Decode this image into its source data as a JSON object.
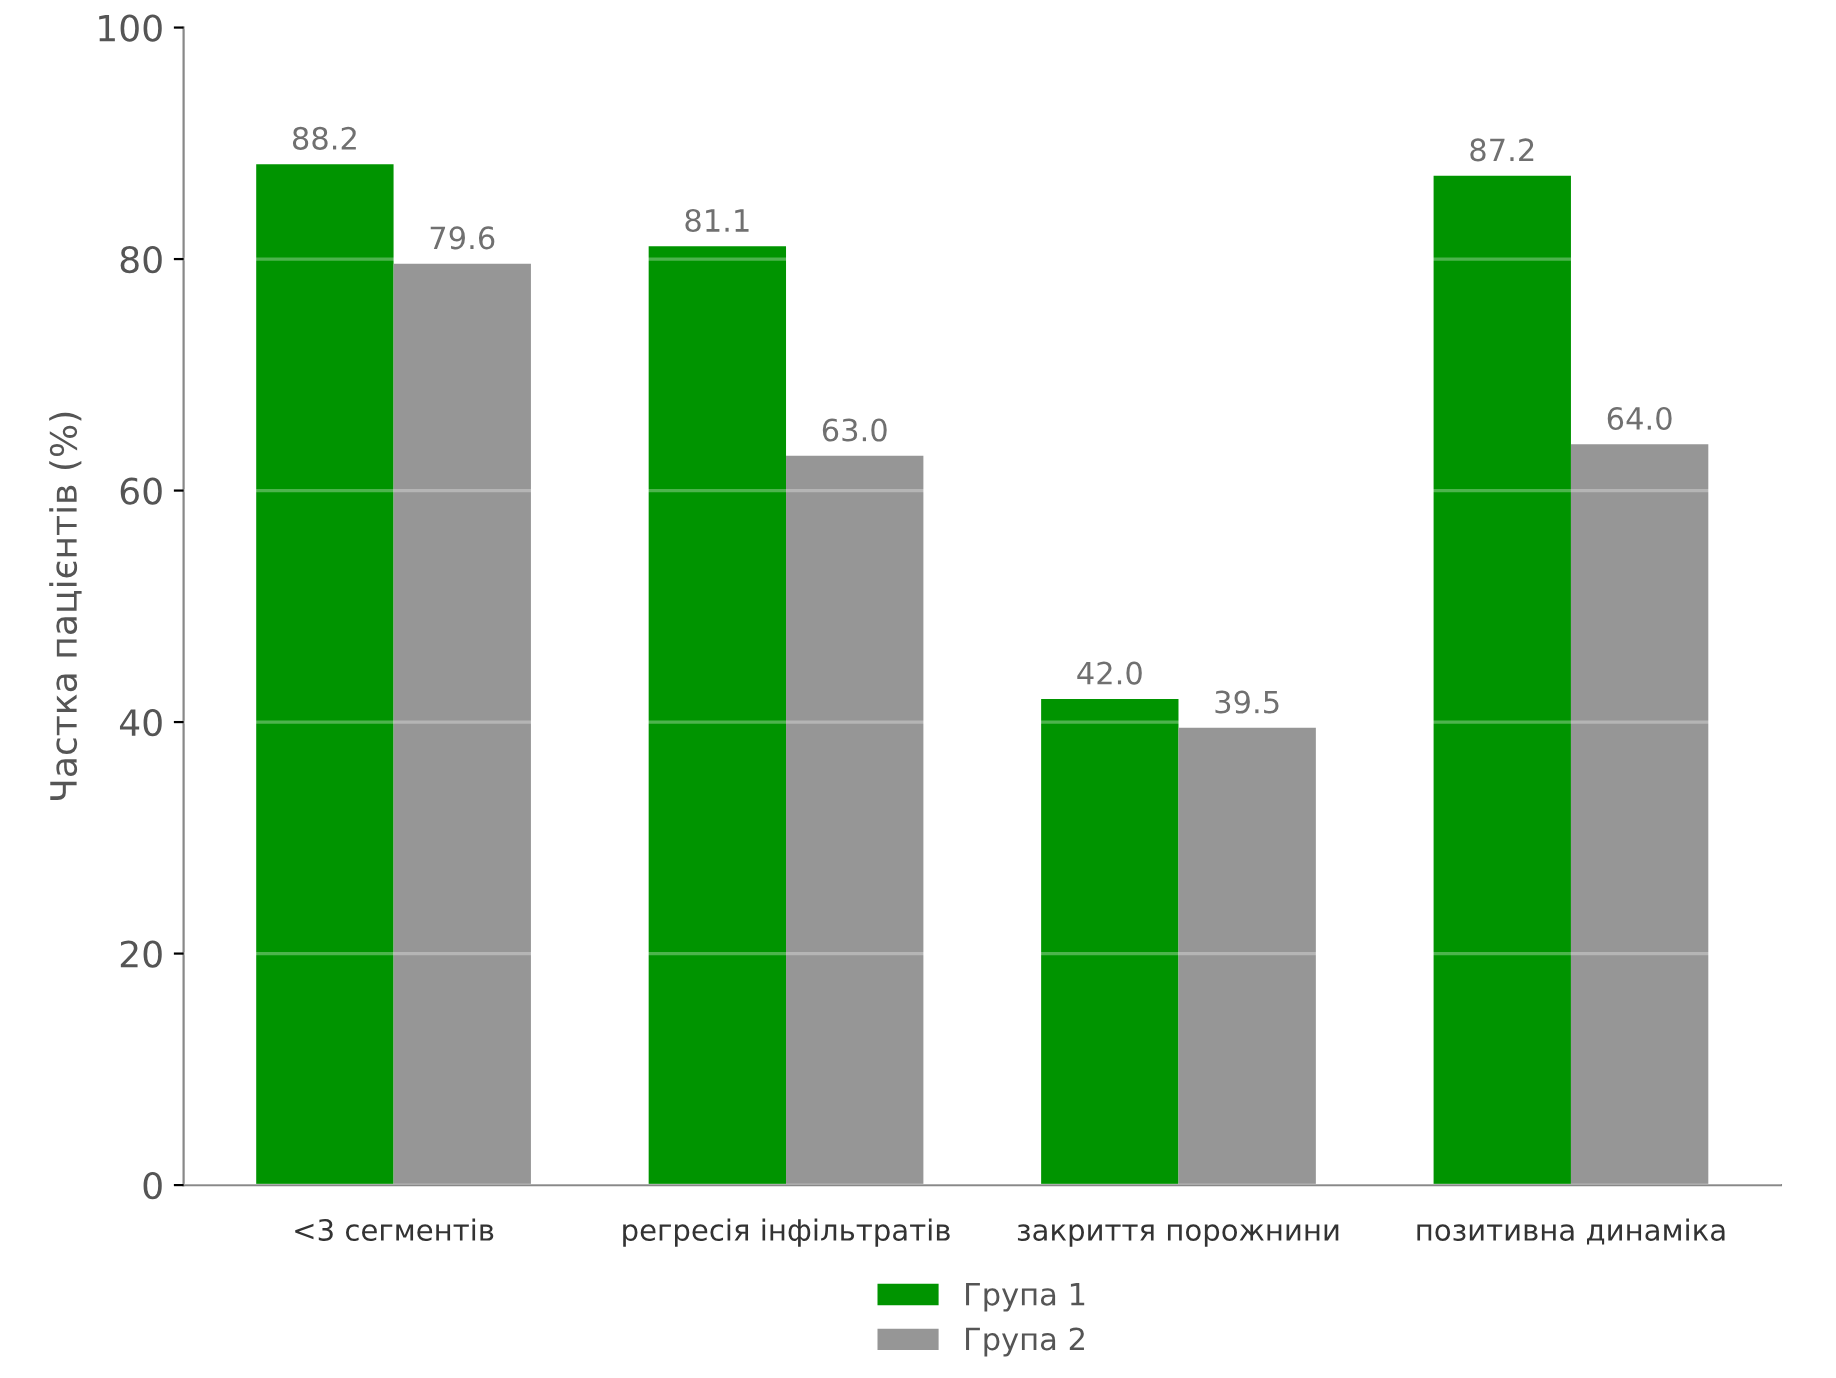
{
  "chart_data": {
    "type": "bar",
    "ylabel": "Частка пацієнтів (%)",
    "categories": [
      "<3 сегментів",
      "регресія інфільтратів",
      "закриття порожнини",
      "позитивна динаміка"
    ],
    "series": [
      {
        "name": "Група 1",
        "color": "#009400",
        "values": [
          88.2,
          81.1,
          42.0,
          87.2
        ],
        "value_labels": [
          "88.2",
          "81.1",
          "42.0",
          "87.2"
        ]
      },
      {
        "name": "Група 2",
        "color": "#969696",
        "values": [
          79.6,
          63.0,
          39.5,
          64.0
        ],
        "value_labels": [
          "79.6",
          "63.0",
          "39.5",
          "64.0"
        ]
      }
    ],
    "ylim": [
      0,
      100
    ],
    "yticks": [
      0,
      20,
      40,
      60,
      80,
      100
    ],
    "grid": "y",
    "legend": "bottom"
  }
}
